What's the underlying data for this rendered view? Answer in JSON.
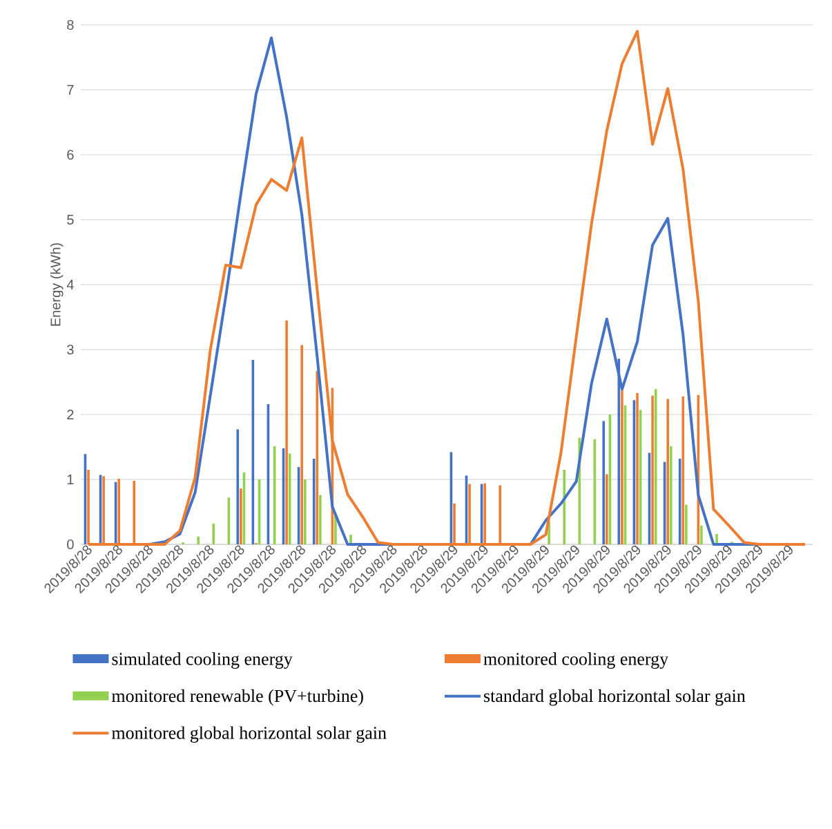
{
  "chart_data": {
    "type": "bar",
    "ylabel": "Energy (kWh)",
    "categories": [
      "2019/8/28",
      null,
      "2019/8/28",
      null,
      "2019/8/28",
      null,
      "2019/8/28",
      null,
      "2019/8/28",
      null,
      "2019/8/28",
      null,
      "2019/8/28",
      null,
      "2019/8/28",
      null,
      "2019/8/28",
      null,
      "2019/8/28",
      null,
      "2019/8/28",
      null,
      "2019/8/28",
      null,
      "2019/8/29",
      null,
      "2019/8/29",
      null,
      "2019/8/29",
      null,
      "2019/8/29",
      null,
      "2019/8/29",
      null,
      "2019/8/29",
      null,
      "2019/8/29",
      null,
      "2019/8/29",
      null,
      "2019/8/29",
      null,
      "2019/8/29",
      null,
      "2019/8/29",
      null,
      "2019/8/29",
      null
    ],
    "series": [
      {
        "name": "simulated cooling energy",
        "color": "#4472c4",
        "values": [
          1.39,
          1.07,
          0.96,
          0,
          0,
          0,
          0,
          0,
          0,
          0,
          1.77,
          2.84,
          2.16,
          1.48,
          1.19,
          1.32,
          null,
          0,
          0,
          0,
          0,
          0,
          0,
          0,
          1.42,
          1.06,
          0.93,
          0,
          0,
          0,
          0,
          0,
          0,
          0,
          1.9,
          2.86,
          2.22,
          1.41,
          1.27,
          1.32,
          null,
          0,
          0,
          0,
          0,
          0,
          0,
          0
        ]
      },
      {
        "name": "monitored cooling energy",
        "color": "#ed7d31",
        "values": [
          1.15,
          1.05,
          1.01,
          0.98,
          0,
          0,
          0,
          0,
          0,
          0,
          0.86,
          0.02,
          0,
          3.45,
          3.07,
          2.67,
          2.41,
          0,
          0,
          0,
          0,
          0,
          0,
          0,
          0.63,
          0.93,
          0.94,
          0.91,
          0,
          0,
          0,
          0,
          0,
          0,
          1.08,
          2.37,
          2.33,
          2.29,
          2.24,
          2.28,
          2.3,
          null,
          0,
          0,
          0,
          0,
          0,
          0
        ]
      },
      {
        "name": "monitored renewable (PV+turbine)",
        "color": "#92d050",
        "values": [
          0,
          0,
          0,
          0,
          0,
          0,
          0.03,
          0.12,
          0.32,
          0.72,
          1.11,
          1.0,
          1.51,
          1.4,
          1.0,
          0.76,
          0.45,
          0.15,
          0,
          0,
          0,
          0,
          0,
          0,
          0,
          0,
          0,
          0,
          0,
          0,
          0.35,
          1.15,
          1.64,
          1.62,
          2.0,
          2.14,
          2.07,
          2.39,
          1.51,
          0.61,
          0.29,
          0.16,
          0.04,
          0,
          0,
          0,
          0,
          0
        ]
      },
      {
        "name": "standard global horizontal solar gain",
        "type": "line",
        "color": "#4472c4",
        "values": [
          0,
          0,
          0,
          0,
          0,
          0.04,
          0.16,
          0.8,
          2.3,
          3.8,
          5.4,
          6.94,
          7.8,
          6.58,
          5.08,
          2.9,
          0.58,
          0,
          0,
          0,
          0,
          0,
          0,
          0,
          0,
          0,
          0,
          0,
          0,
          0,
          0.37,
          0.63,
          0.97,
          2.48,
          3.47,
          2.39,
          3.12,
          4.61,
          5.02,
          3.23,
          0.76,
          0,
          0,
          0,
          0,
          0,
          null,
          null
        ]
      },
      {
        "name": "monitored global horizontal solar gain",
        "type": "line",
        "color": "#ed7d31",
        "values": [
          0,
          0,
          0,
          0,
          0,
          0,
          0.21,
          1.03,
          3.0,
          4.3,
          4.26,
          5.23,
          5.62,
          5.45,
          6.26,
          3.93,
          1.6,
          0.77,
          0.42,
          0.03,
          0,
          0,
          0,
          0,
          0,
          0,
          0,
          0,
          0,
          0,
          0.15,
          1.42,
          3.2,
          4.94,
          6.37,
          7.4,
          7.9,
          6.16,
          7.02,
          5.78,
          3.75,
          0.54,
          0.29,
          0.03,
          0,
          0,
          0,
          0
        ]
      }
    ],
    "ylim": [
      0,
      8
    ],
    "yticks": [
      0,
      1,
      2,
      3,
      4,
      5,
      6,
      7,
      8
    ],
    "grid": "y",
    "legend": "bottom",
    "marker": "none",
    "line_style": "solid"
  }
}
